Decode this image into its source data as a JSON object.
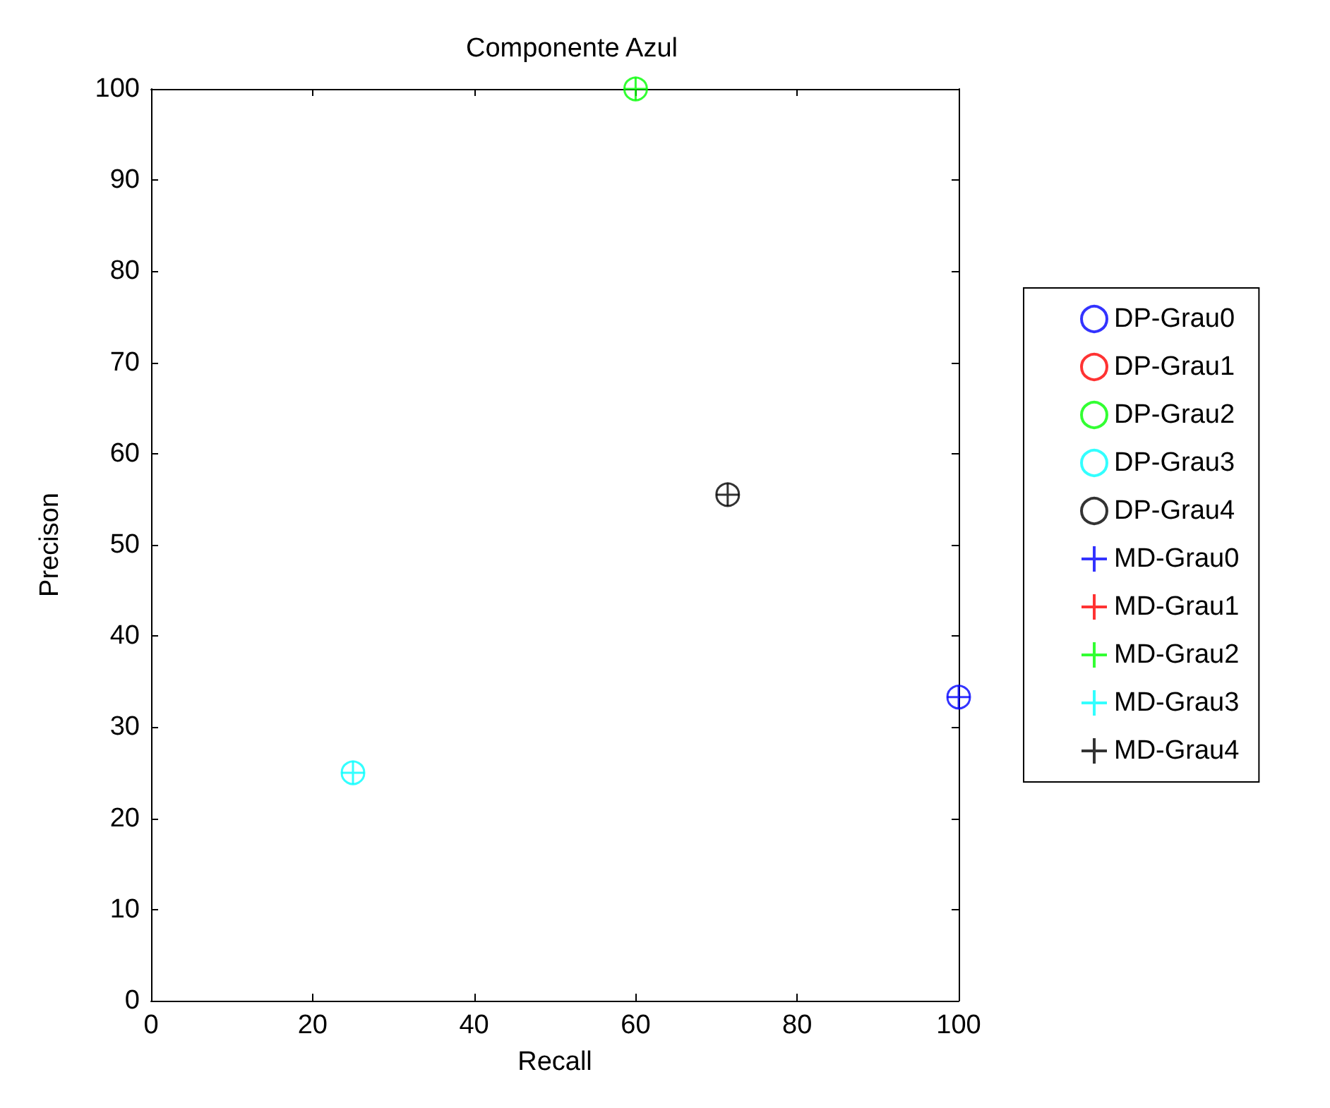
{
  "chart_data": {
    "type": "scatter",
    "title": "Componente Azul",
    "xlabel": "Recall",
    "ylabel": "Precison",
    "xlim": [
      0,
      100
    ],
    "xticks": [
      0,
      20,
      40,
      60,
      80,
      100
    ],
    "ylim": [
      0,
      100
    ],
    "yticks": [
      0,
      10,
      20,
      30,
      40,
      50,
      60,
      70,
      80,
      90,
      100
    ],
    "grid": false,
    "legend": "right",
    "series": [
      {
        "name": "DP-Grau0",
        "color": "#0000ff",
        "marker": "circle",
        "x": [
          100
        ],
        "values": [
          33.3
        ]
      },
      {
        "name": "DP-Grau1",
        "color": "#ff0000",
        "marker": "circle",
        "x": [
          null
        ],
        "values": [
          null
        ]
      },
      {
        "name": "DP-Grau2",
        "color": "#00ff00",
        "marker": "circle",
        "x": [
          60
        ],
        "values": [
          100
        ]
      },
      {
        "name": "DP-Grau3",
        "color": "#00ffff",
        "marker": "circle",
        "x": [
          25
        ],
        "values": [
          25
        ]
      },
      {
        "name": "DP-Grau4",
        "color": "#000000",
        "marker": "circle",
        "x": [
          71.4
        ],
        "values": [
          55.5
        ]
      },
      {
        "name": "MD-Grau0",
        "color": "#0000ff",
        "marker": "cross",
        "x": [
          100
        ],
        "values": [
          33.3
        ]
      },
      {
        "name": "MD-Grau1",
        "color": "#ff0000",
        "marker": "cross",
        "x": [
          null
        ],
        "values": [
          null
        ]
      },
      {
        "name": "MD-Grau2",
        "color": "#00ff00",
        "marker": "cross",
        "x": [
          60
        ],
        "values": [
          100
        ]
      },
      {
        "name": "MD-Grau3",
        "color": "#00ffff",
        "marker": "cross",
        "x": [
          25
        ],
        "values": [
          25
        ]
      },
      {
        "name": "MD-Grau4",
        "color": "#000000",
        "marker": "cross",
        "x": [
          71.4
        ],
        "values": [
          55.5
        ]
      }
    ]
  }
}
